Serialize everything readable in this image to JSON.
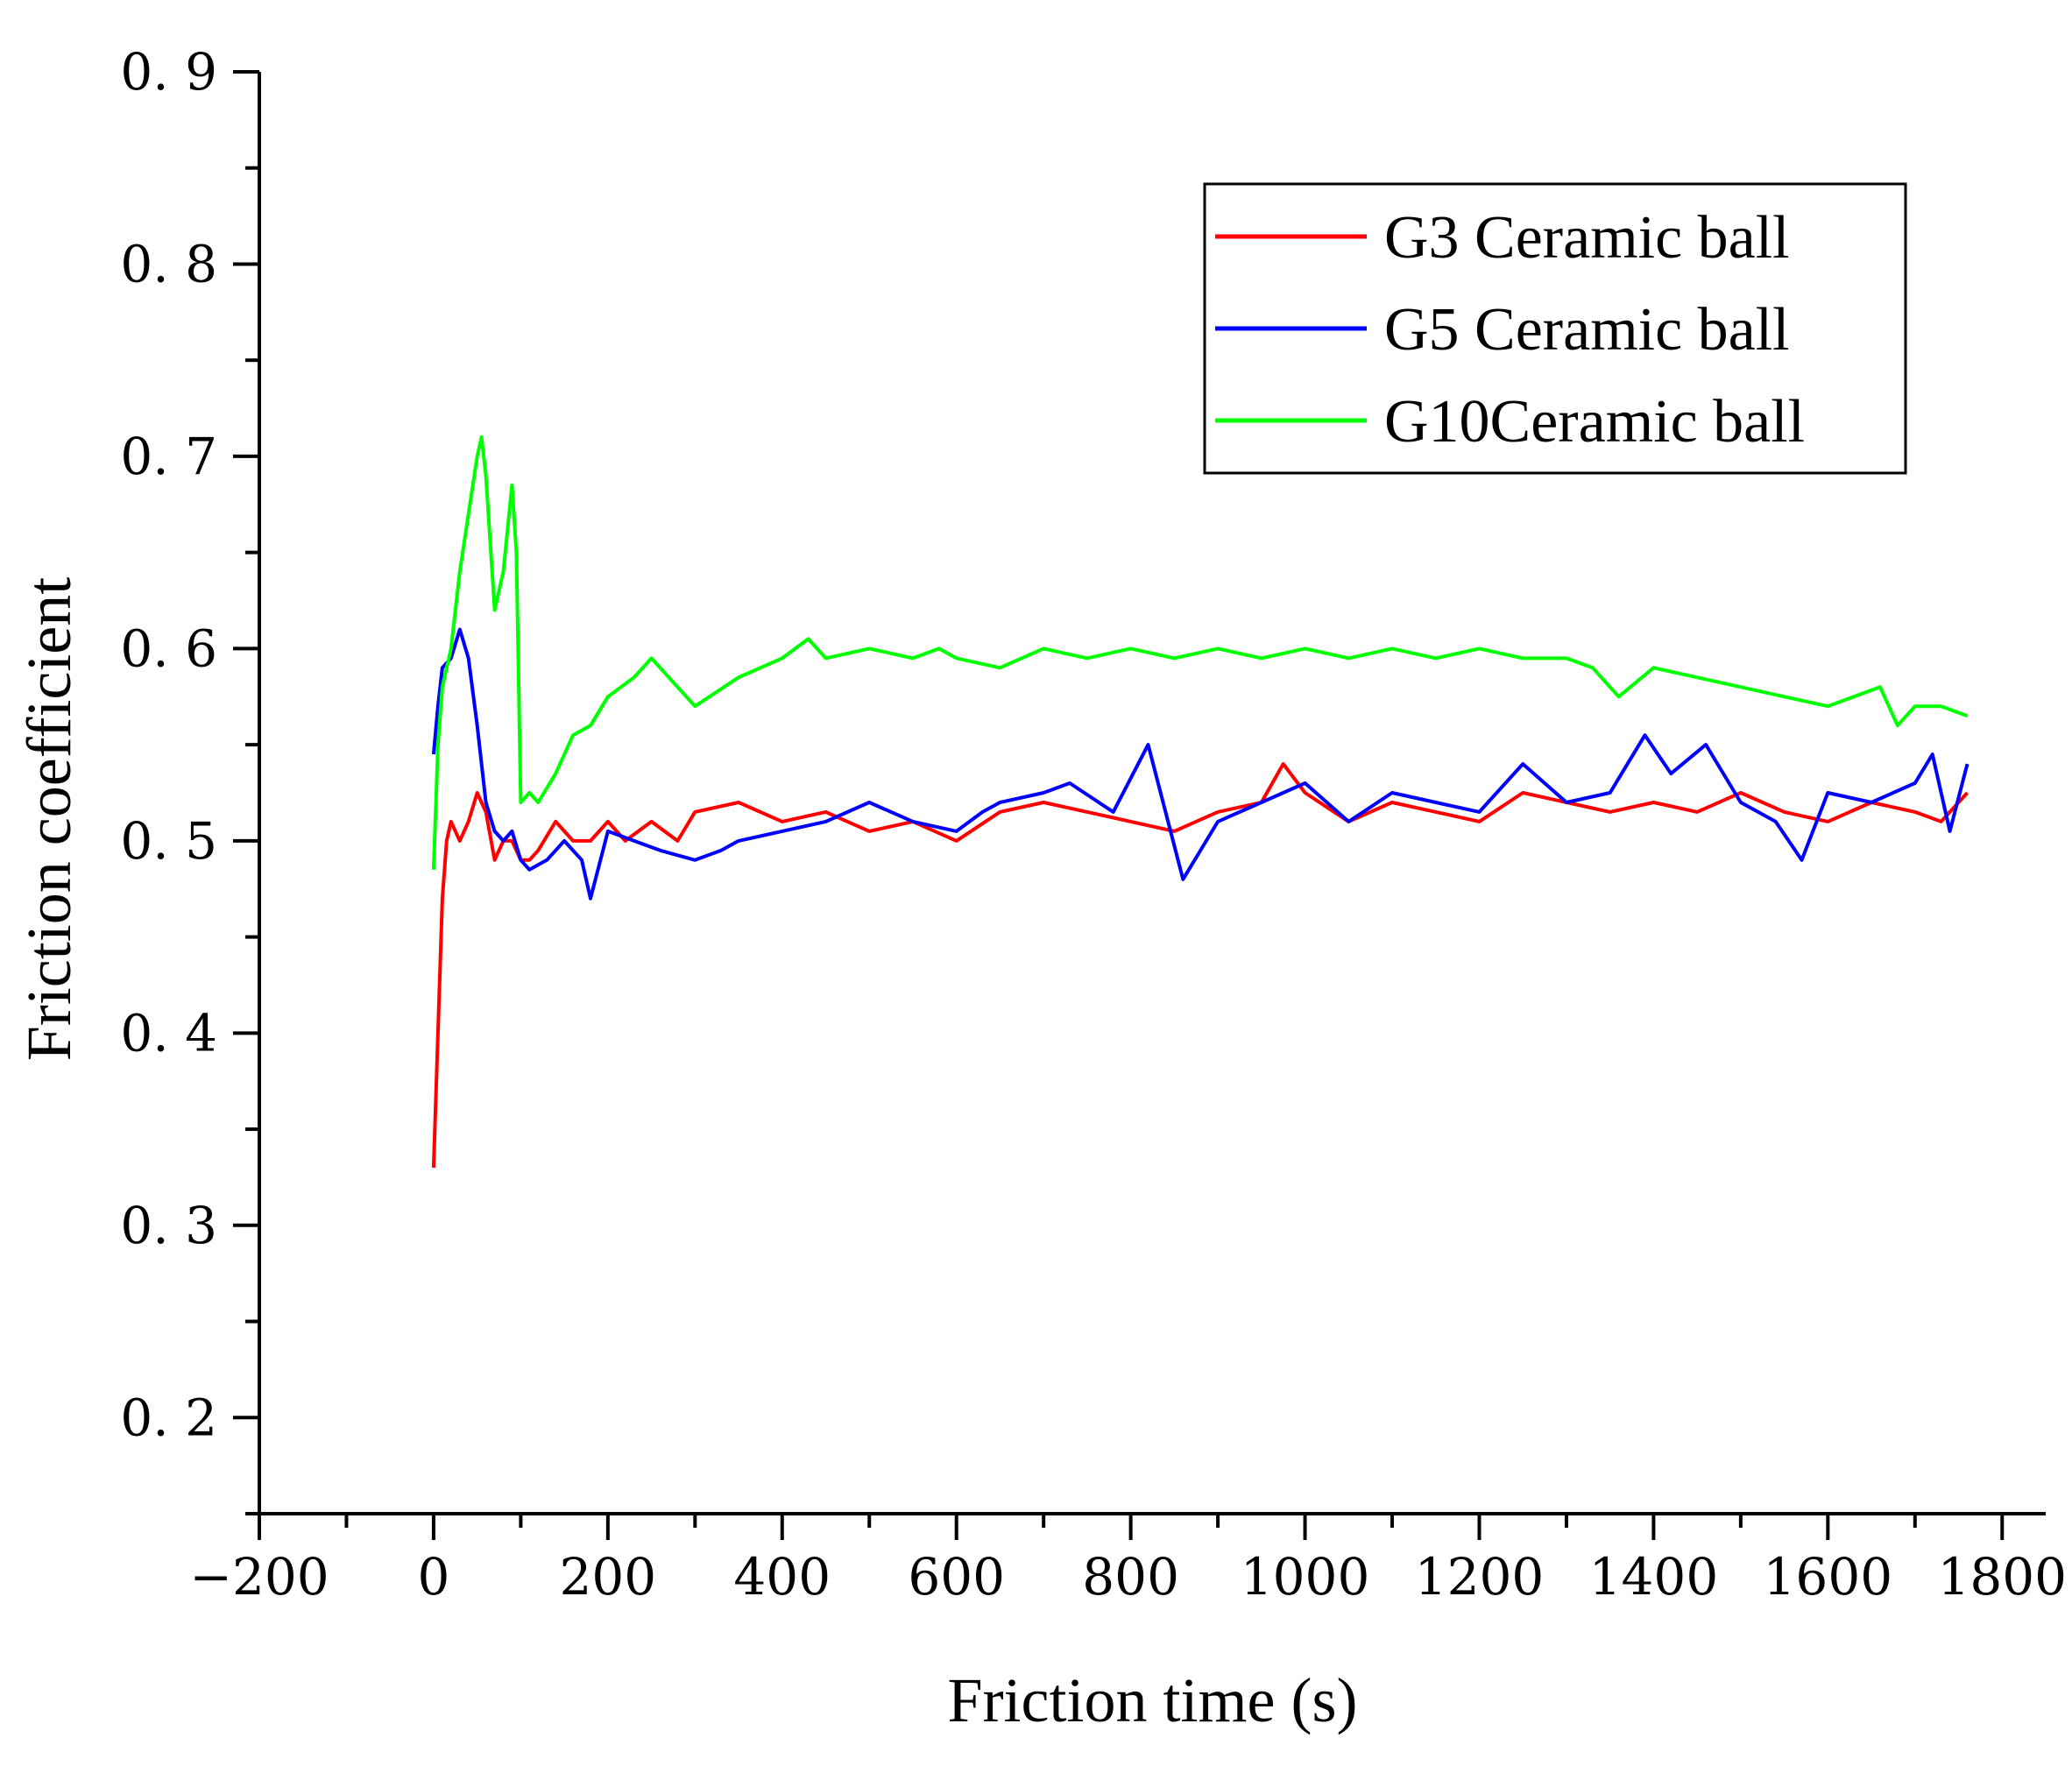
{
  "chart_data": {
    "type": "line",
    "title": "",
    "xlabel": "Friction time (s)",
    "ylabel": "Friction coefficient",
    "xlim": [
      -200,
      1850
    ],
    "ylim": [
      0.15,
      0.9
    ],
    "x_ticks": [
      -200,
      0,
      200,
      400,
      600,
      800,
      1000,
      1200,
      1400,
      1600,
      1800
    ],
    "x_tick_labels": [
      "−200",
      "0",
      "200",
      "400",
      "600",
      "800",
      "1000",
      "1200",
      "1400",
      "1600",
      "1800"
    ],
    "y_ticks": [
      0.2,
      0.3,
      0.4,
      0.5,
      0.6,
      0.7,
      0.8,
      0.9
    ],
    "y_tick_labels": [
      "0. 2",
      "0. 3",
      "0. 4",
      "0. 5",
      "0. 6",
      "0. 7",
      "0. 8",
      "0. 9"
    ],
    "grid": false,
    "legend_position": "top-right",
    "series": [
      {
        "name": "G3 Ceramic ball",
        "color": "#ff0000",
        "x": [
          0,
          5,
          10,
          15,
          20,
          30,
          40,
          50,
          60,
          70,
          80,
          90,
          100,
          110,
          120,
          140,
          160,
          180,
          200,
          220,
          250,
          280,
          300,
          350,
          400,
          450,
          500,
          550,
          600,
          650,
          700,
          750,
          800,
          850,
          900,
          950,
          975,
          1000,
          1050,
          1100,
          1150,
          1200,
          1250,
          1300,
          1350,
          1400,
          1450,
          1500,
          1550,
          1600,
          1650,
          1700,
          1730,
          1760
        ],
        "y": [
          0.33,
          0.4,
          0.47,
          0.5,
          0.51,
          0.5,
          0.51,
          0.525,
          0.515,
          0.49,
          0.5,
          0.5,
          0.49,
          0.49,
          0.495,
          0.51,
          0.5,
          0.5,
          0.51,
          0.5,
          0.51,
          0.5,
          0.515,
          0.52,
          0.51,
          0.515,
          0.505,
          0.51,
          0.5,
          0.515,
          0.52,
          0.515,
          0.51,
          0.505,
          0.515,
          0.52,
          0.54,
          0.525,
          0.51,
          0.52,
          0.515,
          0.51,
          0.525,
          0.52,
          0.515,
          0.52,
          0.515,
          0.525,
          0.515,
          0.51,
          0.52,
          0.515,
          0.51,
          0.525
        ]
      },
      {
        "name": "G5 Ceramic ball",
        "color": "#0000ff",
        "x": [
          0,
          5,
          10,
          20,
          30,
          40,
          50,
          60,
          70,
          80,
          90,
          100,
          110,
          130,
          150,
          170,
          180,
          200,
          230,
          260,
          300,
          330,
          350,
          400,
          450,
          500,
          550,
          600,
          630,
          650,
          700,
          730,
          780,
          820,
          860,
          900,
          950,
          1000,
          1050,
          1100,
          1150,
          1200,
          1250,
          1300,
          1350,
          1390,
          1420,
          1460,
          1500,
          1540,
          1570,
          1600,
          1650,
          1700,
          1720,
          1740,
          1760
        ],
        "y": [
          0.545,
          0.57,
          0.59,
          0.595,
          0.61,
          0.595,
          0.56,
          0.52,
          0.505,
          0.5,
          0.505,
          0.49,
          0.485,
          0.49,
          0.5,
          0.49,
          0.47,
          0.505,
          0.5,
          0.495,
          0.49,
          0.495,
          0.5,
          0.505,
          0.51,
          0.52,
          0.51,
          0.505,
          0.515,
          0.52,
          0.525,
          0.53,
          0.515,
          0.55,
          0.48,
          0.51,
          0.52,
          0.53,
          0.51,
          0.525,
          0.52,
          0.515,
          0.54,
          0.52,
          0.525,
          0.555,
          0.535,
          0.55,
          0.52,
          0.51,
          0.49,
          0.525,
          0.52,
          0.53,
          0.545,
          0.505,
          0.54
        ]
      },
      {
        "name": "G10Ceramic ball",
        "color": "#00ff00",
        "x": [
          0,
          5,
          10,
          20,
          30,
          40,
          50,
          55,
          60,
          70,
          80,
          90,
          95,
          100,
          110,
          120,
          140,
          160,
          180,
          200,
          230,
          250,
          280,
          300,
          350,
          400,
          430,
          450,
          500,
          550,
          580,
          600,
          650,
          700,
          750,
          800,
          850,
          900,
          950,
          1000,
          1050,
          1100,
          1150,
          1200,
          1250,
          1300,
          1330,
          1360,
          1400,
          1450,
          1500,
          1550,
          1600,
          1630,
          1660,
          1680,
          1700,
          1730,
          1760
        ],
        "y": [
          0.485,
          0.55,
          0.58,
          0.6,
          0.64,
          0.67,
          0.7,
          0.71,
          0.69,
          0.62,
          0.64,
          0.685,
          0.65,
          0.52,
          0.525,
          0.52,
          0.535,
          0.555,
          0.56,
          0.575,
          0.585,
          0.595,
          0.58,
          0.57,
          0.585,
          0.595,
          0.605,
          0.595,
          0.6,
          0.595,
          0.6,
          0.595,
          0.59,
          0.6,
          0.595,
          0.6,
          0.595,
          0.6,
          0.595,
          0.6,
          0.595,
          0.6,
          0.595,
          0.6,
          0.595,
          0.595,
          0.59,
          0.575,
          0.59,
          0.585,
          0.58,
          0.575,
          0.57,
          0.575,
          0.58,
          0.56,
          0.57,
          0.57,
          0.565
        ]
      }
    ]
  }
}
